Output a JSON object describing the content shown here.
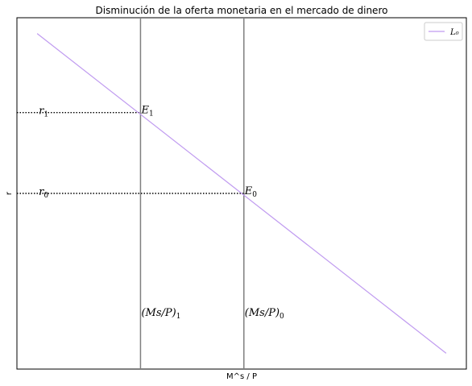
{
  "chart_data": {
    "type": "line",
    "title": "Disminución de la oferta monetaria en el mercado de dinero",
    "xlabel": "M^s / P",
    "ylabel": "r",
    "xlim": [
      0,
      10
    ],
    "ylim": [
      0,
      10
    ],
    "grid": false,
    "legend_position": "top-right",
    "series": [
      {
        "name": "L₀",
        "x": [
          0.45,
          9.55
        ],
        "y": [
          9.55,
          0.45
        ],
        "color": "#c09bf0"
      }
    ],
    "vlines": [
      {
        "x": 2.75,
        "label_main": "(Ms/P)",
        "label_sub": "1",
        "color": "#7f7f7f"
      },
      {
        "x": 5.05,
        "label_main": "(Ms/P)",
        "label_sub": "0",
        "color": "#7f7f7f"
      }
    ],
    "hlines": [
      {
        "y": 7.3,
        "x_end": 2.75,
        "label_main": "r",
        "label_sub": "1"
      },
      {
        "y": 5.0,
        "x_end": 5.05,
        "label_main": "r",
        "label_sub": "0"
      }
    ],
    "points": [
      {
        "x": 2.75,
        "y": 7.3,
        "label_main": "E",
        "label_sub": "1"
      },
      {
        "x": 5.05,
        "y": 5.0,
        "label_main": "E",
        "label_sub": "0"
      }
    ],
    "vline_label_y": 1.6,
    "hline_label_x": 0.45
  }
}
